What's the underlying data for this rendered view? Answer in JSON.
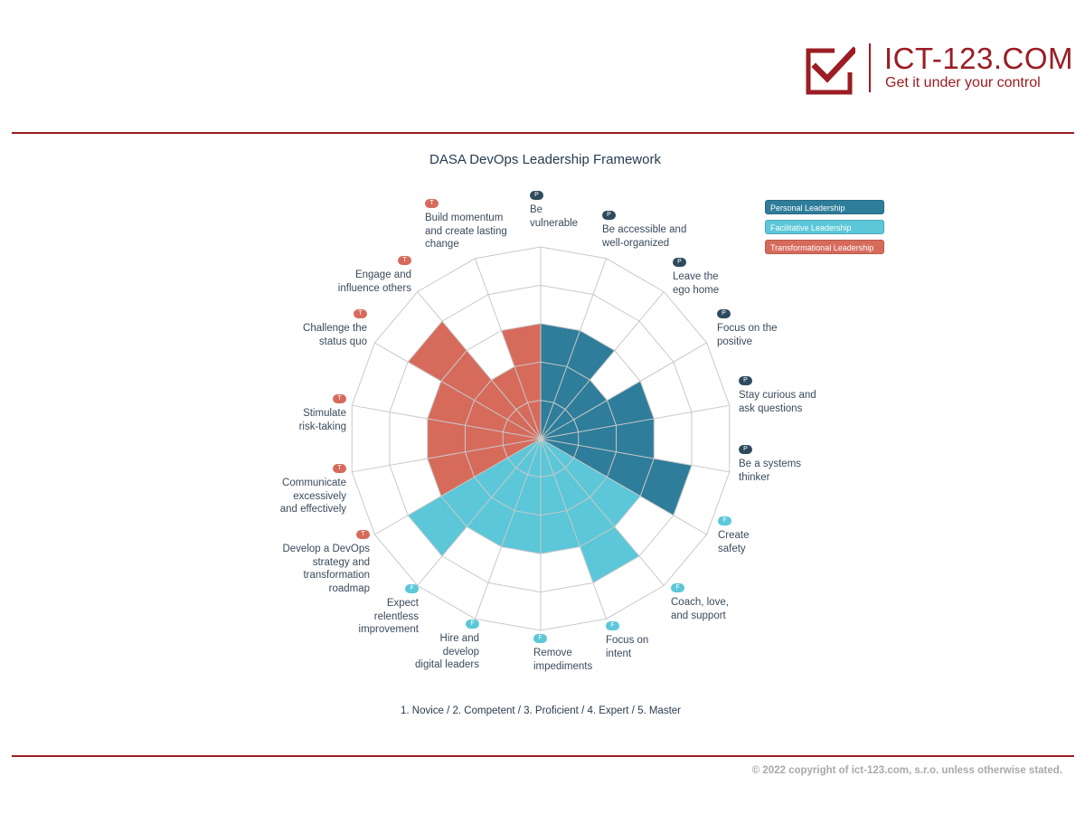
{
  "logo": {
    "name": "ICT-123.COM",
    "tagline": "Get it under your control",
    "icon": "checkbox-check-icon",
    "color": "#9b1c22"
  },
  "chart_title": "DASA DevOps Leadership Framework",
  "legend": [
    {
      "label": "Personal Leadership",
      "color": "#2e7d9a"
    },
    {
      "label": "Facilitative Leadership",
      "color": "#5bc7d8"
    },
    {
      "label": "Transformational Leadership",
      "color": "#d66b5c"
    }
  ],
  "scale_note": "1. Novice / 2. Competent / 3. Proficient / 4. Expert / 5. Master",
  "copyright": "© 2022 copyright of ict-123.com, s.r.o. unless otherwise stated.",
  "chart_data": {
    "type": "radar",
    "title": "DASA DevOps Leadership Framework",
    "rmax": 5,
    "rings": 5,
    "category_badge_colors": {
      "P": "#2e4b5e",
      "F": "#5bc7d8",
      "T": "#d66b5c"
    },
    "category_fill_colors": {
      "P": "#2e7d9a",
      "F": "#5bc7d8",
      "T": "#d66b5c"
    },
    "axes": [
      {
        "label": "Be vulnerable",
        "category": "P",
        "value": 3
      },
      {
        "label": "Be accessible and well-organized",
        "category": "P",
        "value": 3
      },
      {
        "label": "Leave the ego home",
        "category": "P",
        "value": 2
      },
      {
        "label": "Focus on the positive",
        "category": "P",
        "value": 3
      },
      {
        "label": "Stay curious and ask questions",
        "category": "P",
        "value": 3
      },
      {
        "label": "Be a systems thinker",
        "category": "P",
        "value": 4
      },
      {
        "label": "Create safety",
        "category": "F",
        "value": 3
      },
      {
        "label": "Coach, love, and support",
        "category": "F",
        "value": 4
      },
      {
        "label": "Focus on intent",
        "category": "F",
        "value": 3
      },
      {
        "label": "Remove impediments",
        "category": "F",
        "value": 3
      },
      {
        "label": "Hire and develop digital leaders",
        "category": "F",
        "value": 3
      },
      {
        "label": "Expect relentless improvement",
        "category": "F",
        "value": 4
      },
      {
        "label": "Develop a DevOps strategy and transformation roadmap",
        "category": "T",
        "value": 3
      },
      {
        "label": "Communicate excessively and effectively",
        "category": "T",
        "value": 3
      },
      {
        "label": "Stimulate risk-taking",
        "category": "T",
        "value": 3
      },
      {
        "label": "Challenge the status quo",
        "category": "T",
        "value": 4
      },
      {
        "label": "Engage and influence others",
        "category": "T",
        "value": 2
      },
      {
        "label": "Build momentum and create lasting change",
        "category": "T",
        "value": 3
      }
    ]
  }
}
